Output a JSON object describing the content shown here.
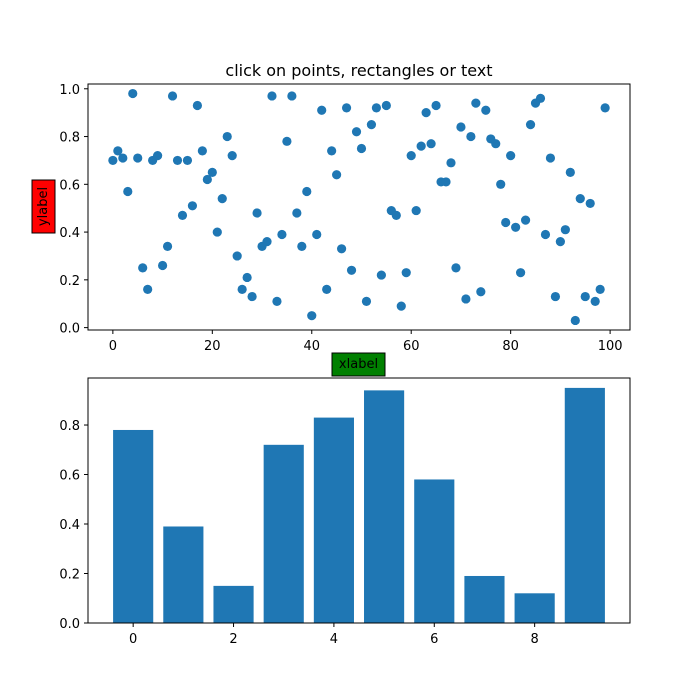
{
  "chart_data": [
    {
      "type": "scatter",
      "title": "click on points, rectangles or text",
      "xlabel": "xlabel",
      "ylabel": "ylabel",
      "xlabel_bg": "#008000",
      "ylabel_bg": "#ff0000",
      "color": "#1f77b4",
      "xlim": [
        -5,
        104
      ],
      "ylim": [
        -0.01,
        1.02
      ],
      "xticks": [
        0,
        20,
        40,
        60,
        80,
        100
      ],
      "yticks": [
        0.0,
        0.2,
        0.4,
        0.6,
        0.8,
        1.0
      ],
      "x": [
        0,
        1,
        2,
        3,
        4,
        5,
        6,
        7,
        8,
        9,
        10,
        11,
        12,
        13,
        14,
        15,
        16,
        17,
        18,
        19,
        20,
        21,
        22,
        23,
        24,
        25,
        26,
        27,
        28,
        29,
        30,
        31,
        32,
        33,
        34,
        35,
        36,
        37,
        38,
        39,
        40,
        41,
        42,
        43,
        44,
        45,
        46,
        47,
        48,
        49,
        50,
        51,
        52,
        53,
        54,
        55,
        56,
        57,
        58,
        59,
        60,
        61,
        62,
        63,
        64,
        65,
        66,
        67,
        68,
        69,
        70,
        71,
        72,
        73,
        74,
        75,
        76,
        77,
        78,
        79,
        80,
        81,
        82,
        83,
        84,
        85,
        86,
        87,
        88,
        89,
        90,
        91,
        92,
        93,
        94,
        95,
        96,
        97,
        98,
        99
      ],
      "y": [
        0.7,
        0.74,
        0.71,
        0.57,
        0.98,
        0.71,
        0.25,
        0.16,
        0.7,
        0.72,
        0.26,
        0.34,
        0.97,
        0.7,
        0.47,
        0.7,
        0.51,
        0.93,
        0.74,
        0.62,
        0.65,
        0.4,
        0.54,
        0.8,
        0.72,
        0.3,
        0.16,
        0.21,
        0.13,
        0.48,
        0.34,
        0.36,
        0.97,
        0.11,
        0.39,
        0.78,
        0.97,
        0.48,
        0.34,
        0.57,
        0.05,
        0.39,
        0.91,
        0.16,
        0.74,
        0.64,
        0.33,
        0.92,
        0.24,
        0.82,
        0.75,
        0.11,
        0.85,
        0.92,
        0.22,
        0.93,
        0.49,
        0.47,
        0.09,
        0.23,
        0.72,
        0.49,
        0.76,
        0.9,
        0.77,
        0.93,
        0.61,
        0.61,
        0.69,
        0.25,
        0.84,
        0.12,
        0.8,
        0.94,
        0.15,
        0.91,
        0.79,
        0.77,
        0.6,
        0.44,
        0.72,
        0.42,
        0.23,
        0.45,
        0.85,
        0.94,
        0.96,
        0.39,
        0.71,
        0.13,
        0.36,
        0.41,
        0.65,
        0.03,
        0.54,
        0.13,
        0.52,
        0.11,
        0.16,
        0.92
      ]
    },
    {
      "type": "bar",
      "color": "#1f77b4",
      "xlim": [
        -0.9,
        9.9
      ],
      "ylim": [
        0,
        0.99
      ],
      "xticks": [
        0,
        2,
        4,
        6,
        8
      ],
      "yticks": [
        0.0,
        0.2,
        0.4,
        0.6,
        0.8
      ],
      "x": [
        0,
        1,
        2,
        3,
        4,
        5,
        6,
        7,
        8,
        9
      ],
      "values": [
        0.78,
        0.39,
        0.15,
        0.72,
        0.83,
        0.94,
        0.58,
        0.19,
        0.12,
        0.95
      ]
    }
  ]
}
